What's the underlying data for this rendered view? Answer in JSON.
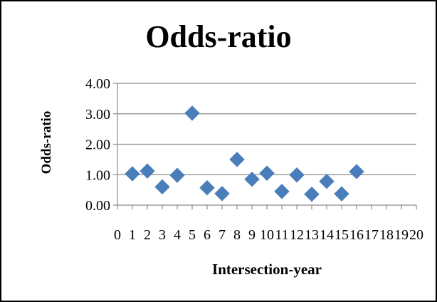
{
  "chart_data": {
    "type": "scatter",
    "title": "Odds-ratio",
    "xlabel": "Intersection-year",
    "ylabel": "Odds-ratio",
    "xlim": [
      0,
      20
    ],
    "ylim": [
      0,
      4
    ],
    "x_ticks": [
      0,
      1,
      2,
      3,
      4,
      5,
      6,
      7,
      8,
      9,
      10,
      11,
      12,
      13,
      14,
      15,
      16,
      17,
      18,
      19,
      20
    ],
    "x_tick_labels": [
      "0",
      "1",
      "2",
      "3",
      "4",
      "5",
      "6",
      "7",
      "8",
      "9",
      "10",
      "11",
      "12",
      "13",
      "14",
      "15",
      "16",
      "17",
      "18",
      "19",
      "20"
    ],
    "y_ticks": [
      0,
      1,
      2,
      3,
      4
    ],
    "y_tick_labels": [
      "0.00",
      "1.00",
      "2.00",
      "3.00",
      "4.00"
    ],
    "grid": "horizontal",
    "legend": "none",
    "marker": "diamond",
    "marker_color": "#4a7ebb",
    "series": [
      {
        "x": [
          1,
          2,
          3,
          4,
          5,
          6,
          7,
          8,
          9,
          10,
          11,
          12,
          13,
          14,
          15,
          16
        ],
        "y": [
          1.03,
          1.12,
          0.6,
          0.98,
          3.02,
          0.57,
          0.38,
          1.5,
          0.85,
          1.05,
          0.45,
          0.99,
          0.36,
          0.78,
          0.37,
          1.1
        ]
      }
    ]
  }
}
